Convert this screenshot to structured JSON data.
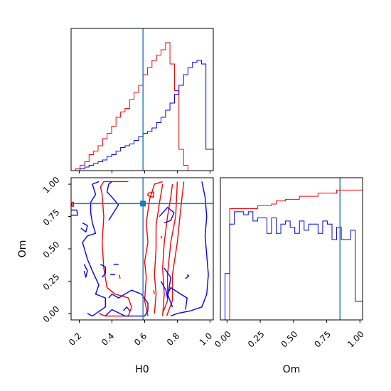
{
  "colors": {
    "series_a": "#ff0000",
    "series_b": "#0000ff",
    "truth": "#1f77b4"
  },
  "chart_data": [
    {
      "panel": "H0 marginal",
      "type": "histogram",
      "xlim": [
        0.15,
        1.02
      ],
      "bin_edges": [
        0.15,
        0.178,
        0.205,
        0.233,
        0.26,
        0.288,
        0.315,
        0.343,
        0.37,
        0.398,
        0.425,
        0.453,
        0.48,
        0.508,
        0.535,
        0.563,
        0.59,
        0.618,
        0.645,
        0.673,
        0.7,
        0.728,
        0.755,
        0.783,
        0.81,
        0.838,
        0.865,
        0.893,
        0.92,
        0.948,
        0.975,
        1.02
      ],
      "series": [
        {
          "color": "red",
          "counts": [
            0,
            1,
            3,
            5,
            9,
            11,
            14,
            18,
            21,
            25,
            30,
            33,
            35,
            40,
            44,
            48,
            54,
            58,
            62,
            65,
            68,
            72,
            60,
            45,
            12,
            3,
            0,
            0,
            0,
            0,
            0
          ]
        },
        {
          "color": "blue",
          "counts": [
            0,
            0,
            1,
            2,
            3,
            4,
            5,
            6,
            8,
            9,
            11,
            13,
            14,
            15,
            17,
            19,
            21,
            22,
            24,
            27,
            30,
            34,
            38,
            43,
            48,
            54,
            58,
            61,
            62,
            60,
            12
          ]
        }
      ],
      "truth_x": 0.59
    },
    {
      "panel": "H0 vs Om",
      "type": "contour",
      "xlabel": "H0",
      "ylabel": "Om",
      "xlim": [
        0.15,
        1.02
      ],
      "ylim": [
        -0.05,
        1.05
      ],
      "xticks": [
        "0.2",
        "0.4",
        "0.6",
        "0.8",
        "1.0"
      ],
      "yticks": [
        "0.00",
        "0.25",
        "0.50",
        "0.75",
        "1.00"
      ],
      "contours": [
        {
          "color": "red",
          "path": [
            [
              0.32,
              0.0
            ],
            [
              0.36,
              -0.02
            ],
            [
              0.5,
              -0.02
            ],
            [
              0.52,
              0.05
            ],
            [
              0.5,
              0.12
            ],
            [
              0.42,
              0.15
            ],
            [
              0.37,
              0.2
            ],
            [
              0.35,
              0.35
            ],
            [
              0.34,
              0.55
            ],
            [
              0.35,
              0.75
            ],
            [
              0.34,
              0.92
            ],
            [
              0.33,
              0.98
            ],
            [
              0.35,
              1.02
            ],
            [
              0.5,
              1.02
            ]
          ]
        },
        {
          "color": "red",
          "path": [
            [
              0.62,
              -0.02
            ],
            [
              0.6,
              0.1
            ],
            [
              0.61,
              0.28
            ],
            [
              0.6,
              0.4
            ],
            [
              0.62,
              0.55
            ],
            [
              0.61,
              0.7
            ],
            [
              0.63,
              0.88
            ],
            [
              0.66,
              1.0
            ],
            [
              0.71,
              1.02
            ]
          ]
        },
        {
          "color": "red",
          "path": [
            [
              0.66,
              0.0
            ],
            [
              0.67,
              0.15
            ],
            [
              0.66,
              0.3
            ],
            [
              0.67,
              0.5
            ],
            [
              0.67,
              0.68
            ],
            [
              0.69,
              0.85
            ],
            [
              0.71,
              1.0
            ]
          ]
        },
        {
          "color": "red",
          "path": [
            [
              0.71,
              -0.02
            ],
            [
              0.72,
              0.15
            ],
            [
              0.71,
              0.35
            ],
            [
              0.72,
              0.55
            ],
            [
              0.74,
              0.75
            ],
            [
              0.76,
              0.9
            ],
            [
              0.77,
              1.0
            ]
          ]
        },
        {
          "color": "red",
          "path": [
            [
              0.71,
              0.0
            ],
            [
              0.74,
              0.1
            ],
            [
              0.74,
              0.3
            ],
            [
              0.76,
              0.55
            ],
            [
              0.79,
              0.75
            ],
            [
              0.8,
              1.02
            ]
          ]
        },
        {
          "color": "red",
          "path": [
            [
              0.735,
              -0.02
            ],
            [
              0.77,
              0.1
            ],
            [
              0.77,
              0.3
            ],
            [
              0.8,
              0.55
            ],
            [
              0.82,
              0.8
            ],
            [
              0.84,
              1.02
            ]
          ]
        },
        {
          "color": "red",
          "path": [
            [
              0.62,
              0.93
            ],
            [
              0.655,
              0.94
            ],
            [
              0.655,
              0.9
            ],
            [
              0.62,
              0.91
            ],
            [
              0.62,
              0.93
            ]
          ]
        },
        {
          "color": "red",
          "path": [
            [
              0.155,
              0.86
            ],
            [
              0.165,
              0.86
            ],
            [
              0.165,
              0.83
            ],
            [
              0.155,
              0.83
            ],
            [
              0.155,
              0.86
            ]
          ]
        },
        {
          "color": "red",
          "path": [
            [
              0.445,
              0.3
            ],
            [
              0.45,
              0.27
            ]
          ]
        },
        {
          "color": "red",
          "path": [
            [
              0.655,
              0.18
            ],
            [
              0.66,
              0.15
            ]
          ]
        },
        {
          "color": "red",
          "path": [
            [
              0.7,
              0.6
            ],
            [
              0.705,
              0.58
            ]
          ]
        },
        {
          "color": "blue",
          "path": [
            [
              0.15,
              0.8
            ],
            [
              0.185,
              0.8
            ],
            [
              0.19,
              0.76
            ],
            [
              0.15,
              0.76
            ]
          ]
        },
        {
          "color": "blue",
          "path": [
            [
              0.25,
              0.0
            ],
            [
              0.28,
              -0.02
            ],
            [
              0.36,
              0.05
            ],
            [
              0.36,
              0.12
            ],
            [
              0.3,
              0.15
            ],
            [
              0.32,
              0.22
            ],
            [
              0.28,
              0.33
            ],
            [
              0.25,
              0.42
            ],
            [
              0.22,
              0.55
            ],
            [
              0.25,
              0.6
            ],
            [
              0.3,
              0.62
            ],
            [
              0.28,
              0.7
            ],
            [
              0.27,
              0.78
            ],
            [
              0.27,
              0.86
            ],
            [
              0.3,
              0.92
            ],
            [
              0.28,
              1.0
            ],
            [
              0.32,
              1.02
            ]
          ]
        },
        {
          "color": "blue",
          "path": [
            [
              0.36,
              -0.02
            ],
            [
              0.4,
              0.03
            ],
            [
              0.48,
              -0.02
            ],
            [
              0.6,
              -0.02
            ],
            [
              0.62,
              0.02
            ],
            [
              0.62,
              0.08
            ],
            [
              0.58,
              0.15
            ],
            [
              0.52,
              0.18
            ],
            [
              0.44,
              0.12
            ],
            [
              0.4,
              0.15
            ],
            [
              0.38,
              0.12
            ]
          ]
        },
        {
          "color": "blue",
          "path": [
            [
              0.38,
              0.72
            ],
            [
              0.41,
              0.78
            ],
            [
              0.44,
              0.84
            ],
            [
              0.4,
              0.9
            ],
            [
              0.37,
              0.94
            ],
            [
              0.38,
              1.0
            ],
            [
              0.4,
              1.02
            ]
          ]
        },
        {
          "color": "blue",
          "path": [
            [
              0.76,
              -0.02
            ],
            [
              0.8,
              0.0
            ],
            [
              0.88,
              0.02
            ],
            [
              0.95,
              0.05
            ],
            [
              0.98,
              0.15
            ],
            [
              0.99,
              0.3
            ],
            [
              0.98,
              0.45
            ],
            [
              0.97,
              0.6
            ],
            [
              0.98,
              0.75
            ],
            [
              0.97,
              0.9
            ],
            [
              0.95,
              1.02
            ]
          ]
        },
        {
          "color": "blue",
          "path": [
            [
              0.77,
              0.05
            ],
            [
              0.74,
              0.15
            ],
            [
              0.76,
              0.2
            ],
            [
              0.82,
              0.15
            ],
            [
              0.86,
              0.12
            ],
            [
              0.85,
              0.03
            ]
          ]
        },
        {
          "color": "blue",
          "path": [
            [
              0.69,
              0.75
            ],
            [
              0.74,
              0.82
            ],
            [
              0.78,
              0.78
            ],
            [
              0.76,
              0.72
            ],
            [
              0.72,
              0.7
            ]
          ]
        },
        {
          "color": "blue",
          "path": [
            [
              0.7,
              0.25
            ],
            [
              0.73,
              0.18
            ],
            [
              0.74,
              0.12
            ],
            [
              0.76,
              0.28
            ],
            [
              0.72,
              0.35
            ]
          ]
        },
        {
          "color": "blue",
          "path": [
            [
              0.33,
              0.38
            ],
            [
              0.36,
              0.36
            ],
            [
              0.36,
              0.31
            ],
            [
              0.34,
              0.28
            ]
          ]
        },
        {
          "color": "blue",
          "path": [
            [
              0.39,
              0.3
            ],
            [
              0.42,
              0.3
            ]
          ]
        },
        {
          "color": "blue",
          "path": [
            [
              0.41,
              0.38
            ],
            [
              0.44,
              0.38
            ]
          ]
        },
        {
          "color": "blue",
          "path": [
            [
              0.23,
              0.38
            ],
            [
              0.25,
              0.33
            ],
            [
              0.24,
              0.28
            ],
            [
              0.23,
              0.33
            ]
          ]
        },
        {
          "color": "blue",
          "path": [
            [
              0.22,
              0.7
            ],
            [
              0.25,
              0.68
            ],
            [
              0.24,
              0.63
            ],
            [
              0.21,
              0.66
            ]
          ]
        },
        {
          "color": "blue",
          "path": [
            [
              0.85,
              0.27
            ],
            [
              0.87,
              0.29
            ],
            [
              0.86,
              0.3
            ]
          ]
        },
        {
          "color": "blue",
          "path": [
            [
              0.47,
              0.02
            ],
            [
              0.49,
              0.05
            ],
            [
              0.51,
              0.02
            ]
          ]
        }
      ],
      "truth_point": [
        0.59,
        0.85
      ]
    },
    {
      "panel": "Om marginal",
      "type": "histogram",
      "xlabel": "Om",
      "xlim": [
        -0.05,
        1.02
      ],
      "xticks": [
        "0.00",
        "0.25",
        "0.50",
        "0.75",
        "1.00"
      ],
      "bin_edges": [
        -0.05,
        -0.015,
        0.02,
        0.055,
        0.09,
        0.125,
        0.16,
        0.195,
        0.23,
        0.265,
        0.3,
        0.335,
        0.37,
        0.405,
        0.44,
        0.475,
        0.51,
        0.545,
        0.58,
        0.615,
        0.65,
        0.685,
        0.72,
        0.755,
        0.79,
        0.825,
        0.86,
        0.895,
        0.93,
        0.965,
        1.02
      ],
      "series": [
        {
          "color": "red",
          "counts": [
            0,
            0,
            72,
            72,
            72,
            72,
            72,
            72,
            74,
            74,
            74,
            75,
            77,
            77,
            78,
            78,
            78,
            80,
            80,
            80,
            80,
            82,
            82,
            82,
            82,
            84,
            84,
            84,
            84,
            84
          ]
        },
        {
          "color": "blue",
          "counts": [
            0,
            30,
            62,
            70,
            70,
            68,
            70,
            64,
            66,
            66,
            56,
            66,
            56,
            62,
            64,
            60,
            56,
            64,
            58,
            62,
            62,
            56,
            64,
            62,
            52,
            60,
            52,
            52,
            58,
            12
          ]
        }
      ],
      "truth_x": 0.85
    }
  ]
}
